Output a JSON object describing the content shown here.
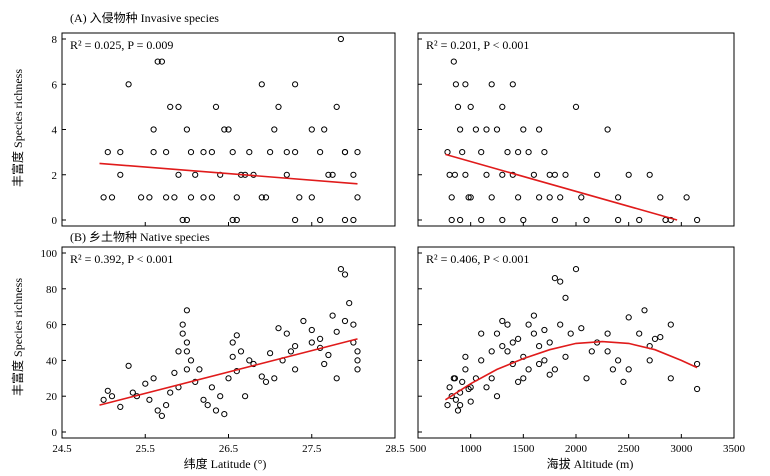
{
  "figure": {
    "section_a": "(A) 入侵物种  Invasive species",
    "section_b": "(B) 乡土物种  Native species",
    "ylabel_top": "丰富度  Species richness",
    "ylabel_bottom": "丰富度  Species richness",
    "xlabel_left": "纬度 Latitude (°)",
    "xlabel_right": "海拔 Altitude (m)",
    "fit_color": "#e01b1b"
  },
  "chart_data": [
    {
      "type": "scatter",
      "panel": "A-left",
      "stat": "R² = 0.025, P = 0.009",
      "xlim": [
        24.5,
        28.5
      ],
      "ylim": [
        0,
        8
      ],
      "yticks": [
        0,
        2,
        4,
        6,
        8
      ],
      "fit": {
        "kind": "linear",
        "x": [
          24.95,
          28.05
        ],
        "y": [
          2.5,
          1.6
        ]
      },
      "points": [
        [
          25.0,
          1
        ],
        [
          25.1,
          1
        ],
        [
          25.2,
          2
        ],
        [
          25.3,
          6
        ],
        [
          25.45,
          1
        ],
        [
          25.55,
          1
        ],
        [
          25.6,
          4
        ],
        [
          25.65,
          7
        ],
        [
          25.7,
          7
        ],
        [
          25.75,
          3
        ],
        [
          25.8,
          5
        ],
        [
          25.85,
          1
        ],
        [
          25.9,
          2
        ],
        [
          26.0,
          4
        ],
        [
          26.05,
          3
        ],
        [
          26.1,
          2
        ],
        [
          26.2,
          1
        ],
        [
          26.3,
          3
        ],
        [
          26.35,
          5
        ],
        [
          26.4,
          2
        ],
        [
          26.5,
          4
        ],
        [
          26.55,
          3
        ],
        [
          26.6,
          1
        ],
        [
          26.7,
          2
        ],
        [
          26.8,
          2
        ],
        [
          26.9,
          6
        ],
        [
          26.95,
          1
        ],
        [
          27.0,
          3
        ],
        [
          27.1,
          5
        ],
        [
          27.2,
          2
        ],
        [
          27.3,
          6
        ],
        [
          27.35,
          1
        ],
        [
          27.5,
          4
        ],
        [
          27.6,
          3
        ],
        [
          27.7,
          2
        ],
        [
          27.8,
          5
        ],
        [
          27.85,
          8
        ],
        [
          27.9,
          3
        ],
        [
          28.0,
          2
        ],
        [
          28.05,
          1
        ],
        [
          25.95,
          0
        ],
        [
          26.0,
          0
        ],
        [
          26.55,
          0
        ],
        [
          26.6,
          0
        ],
        [
          27.3,
          0
        ],
        [
          27.6,
          0
        ],
        [
          27.9,
          0
        ],
        [
          28.0,
          0
        ],
        [
          25.05,
          3
        ],
        [
          25.6,
          3
        ],
        [
          26.2,
          3
        ],
        [
          26.75,
          3
        ],
        [
          27.3,
          3
        ],
        [
          27.9,
          3
        ],
        [
          25.9,
          5
        ],
        [
          26.45,
          4
        ],
        [
          27.05,
          4
        ],
        [
          27.65,
          4
        ],
        [
          25.75,
          1
        ],
        [
          26.3,
          1
        ],
        [
          26.9,
          1
        ],
        [
          27.5,
          1
        ],
        [
          28.05,
          3
        ],
        [
          25.2,
          3
        ],
        [
          26.05,
          1
        ],
        [
          26.65,
          2
        ],
        [
          27.2,
          3
        ],
        [
          27.75,
          2
        ]
      ]
    },
    {
      "type": "scatter",
      "panel": "A-right",
      "stat": "R² = 0.201, P < 0.001",
      "xlim": [
        500,
        3500
      ],
      "ylim": [
        0,
        8
      ],
      "yticks": [
        0,
        2,
        4,
        6,
        8
      ],
      "fit": {
        "kind": "linear",
        "x": [
          760,
          2960
        ],
        "y": [
          2.9,
          0.0
        ]
      },
      "points": [
        [
          780,
          3
        ],
        [
          800,
          2
        ],
        [
          820,
          1
        ],
        [
          840,
          7
        ],
        [
          860,
          6
        ],
        [
          880,
          5
        ],
        [
          900,
          4
        ],
        [
          920,
          3
        ],
        [
          950,
          2
        ],
        [
          980,
          1
        ],
        [
          1000,
          5
        ],
        [
          1050,
          4
        ],
        [
          1100,
          3
        ],
        [
          1150,
          2
        ],
        [
          1200,
          1
        ],
        [
          1250,
          4
        ],
        [
          1300,
          5
        ],
        [
          1350,
          3
        ],
        [
          1400,
          2
        ],
        [
          1450,
          1
        ],
        [
          1500,
          4
        ],
        [
          1550,
          3
        ],
        [
          1600,
          2
        ],
        [
          1650,
          1
        ],
        [
          1700,
          3
        ],
        [
          1750,
          2
        ],
        [
          1800,
          2
        ],
        [
          1850,
          1
        ],
        [
          1900,
          2
        ],
        [
          2000,
          5
        ],
        [
          2050,
          1
        ],
        [
          2200,
          2
        ],
        [
          2300,
          4
        ],
        [
          2400,
          1
        ],
        [
          2500,
          2
        ],
        [
          2700,
          2
        ],
        [
          2800,
          1
        ],
        [
          2900,
          0
        ],
        [
          3050,
          1
        ],
        [
          3150,
          0
        ],
        [
          820,
          0
        ],
        [
          900,
          0
        ],
        [
          1100,
          0
        ],
        [
          1300,
          0
        ],
        [
          1500,
          0
        ],
        [
          1800,
          0
        ],
        [
          2100,
          0
        ],
        [
          2400,
          0
        ],
        [
          2600,
          0
        ],
        [
          2850,
          0
        ],
        [
          1200,
          6
        ],
        [
          1400,
          6
        ],
        [
          950,
          6
        ],
        [
          1150,
          4
        ],
        [
          1650,
          4
        ],
        [
          850,
          2
        ],
        [
          1000,
          1
        ],
        [
          1300,
          2
        ],
        [
          1450,
          3
        ],
        [
          1750,
          1
        ]
      ]
    },
    {
      "type": "scatter",
      "panel": "B-left",
      "stat": "R² = 0.392, P < 0.001",
      "xlim": [
        24.5,
        28.5
      ],
      "ylim": [
        0,
        100
      ],
      "yticks": [
        0,
        20,
        40,
        60,
        80,
        100
      ],
      "xticks": [
        24.5,
        25.5,
        26.5,
        27.5,
        28.5
      ],
      "fit": {
        "kind": "linear",
        "x": [
          24.95,
          28.05
        ],
        "y": [
          15,
          52
        ]
      },
      "points": [
        [
          25.0,
          18
        ],
        [
          25.05,
          23
        ],
        [
          25.1,
          20
        ],
        [
          25.2,
          14
        ],
        [
          25.3,
          37
        ],
        [
          25.35,
          22
        ],
        [
          25.5,
          27
        ],
        [
          25.55,
          18
        ],
        [
          25.6,
          30
        ],
        [
          25.65,
          12
        ],
        [
          25.7,
          9
        ],
        [
          25.75,
          15
        ],
        [
          25.8,
          22
        ],
        [
          25.85,
          33
        ],
        [
          25.9,
          45
        ],
        [
          25.95,
          60
        ],
        [
          26.0,
          68
        ],
        [
          26.0,
          50
        ],
        [
          26.05,
          40
        ],
        [
          26.1,
          28
        ],
        [
          26.15,
          35
        ],
        [
          26.2,
          18
        ],
        [
          26.3,
          25
        ],
        [
          26.35,
          12
        ],
        [
          26.4,
          20
        ],
        [
          26.5,
          30
        ],
        [
          26.55,
          50
        ],
        [
          26.6,
          54
        ],
        [
          26.65,
          45
        ],
        [
          26.7,
          20
        ],
        [
          26.8,
          38
        ],
        [
          26.9,
          31
        ],
        [
          26.95,
          28
        ],
        [
          27.0,
          44
        ],
        [
          27.1,
          58
        ],
        [
          27.15,
          40
        ],
        [
          27.2,
          55
        ],
        [
          27.3,
          48
        ],
        [
          27.4,
          62
        ],
        [
          27.5,
          57
        ],
        [
          27.6,
          47
        ],
        [
          27.7,
          43
        ],
        [
          27.75,
          65
        ],
        [
          27.8,
          56
        ],
        [
          27.85,
          91
        ],
        [
          27.9,
          88
        ],
        [
          27.95,
          72
        ],
        [
          28.0,
          60
        ],
        [
          28.05,
          40
        ],
        [
          28.05,
          35
        ],
        [
          25.95,
          55
        ],
        [
          26.0,
          45
        ],
        [
          26.0,
          35
        ],
        [
          26.55,
          42
        ],
        [
          26.6,
          34
        ],
        [
          27.3,
          35
        ],
        [
          27.6,
          52
        ],
        [
          27.9,
          62
        ],
        [
          28.0,
          50
        ],
        [
          25.4,
          20
        ],
        [
          25.9,
          25
        ],
        [
          26.45,
          10
        ],
        [
          27.05,
          30
        ],
        [
          27.5,
          50
        ],
        [
          27.8,
          30
        ],
        [
          26.25,
          15
        ],
        [
          26.75,
          40
        ],
        [
          27.25,
          45
        ],
        [
          27.65,
          38
        ],
        [
          28.05,
          45
        ]
      ]
    },
    {
      "type": "scatter",
      "panel": "B-right",
      "stat": "R² = 0.406, P < 0.001",
      "xlim": [
        500,
        3500
      ],
      "ylim": [
        0,
        100
      ],
      "yticks": [
        0,
        20,
        40,
        60,
        80,
        100
      ],
      "xticks": [
        500,
        1000,
        1500,
        2000,
        2500,
        3000,
        3500
      ],
      "fit": {
        "kind": "quadratic",
        "x": [
          760,
          1000,
          1250,
          1500,
          1750,
          2000,
          2250,
          2500,
          2750,
          3000,
          3150
        ],
        "y": [
          18,
          27,
          35,
          41,
          46,
          49.5,
          50.5,
          49.5,
          46,
          40,
          36
        ]
      },
      "points": [
        [
          780,
          15
        ],
        [
          800,
          25
        ],
        [
          820,
          20
        ],
        [
          840,
          30
        ],
        [
          860,
          18
        ],
        [
          880,
          12
        ],
        [
          900,
          22
        ],
        [
          920,
          28
        ],
        [
          950,
          35
        ],
        [
          980,
          24
        ],
        [
          1000,
          17
        ],
        [
          1050,
          30
        ],
        [
          1100,
          40
        ],
        [
          1150,
          25
        ],
        [
          1200,
          45
        ],
        [
          1250,
          55
        ],
        [
          1300,
          48
        ],
        [
          1350,
          60
        ],
        [
          1400,
          38
        ],
        [
          1450,
          52
        ],
        [
          1500,
          42
        ],
        [
          1550,
          35
        ],
        [
          1600,
          55
        ],
        [
          1650,
          48
        ],
        [
          1700,
          40
        ],
        [
          1750,
          50
        ],
        [
          1800,
          86
        ],
        [
          1850,
          84
        ],
        [
          1900,
          75
        ],
        [
          2000,
          91
        ],
        [
          2050,
          58
        ],
        [
          2200,
          50
        ],
        [
          2300,
          45
        ],
        [
          2400,
          40
        ],
        [
          2500,
          64
        ],
        [
          2600,
          55
        ],
        [
          2650,
          68
        ],
        [
          2700,
          48
        ],
        [
          2800,
          53
        ],
        [
          2900,
          60
        ],
        [
          3150,
          38
        ],
        [
          3150,
          24
        ],
        [
          850,
          30
        ],
        [
          900,
          15
        ],
        [
          950,
          42
        ],
        [
          1000,
          25
        ],
        [
          1100,
          55
        ],
        [
          1200,
          30
        ],
        [
          1300,
          62
        ],
        [
          1400,
          50
        ],
        [
          1500,
          30
        ],
        [
          1600,
          65
        ],
        [
          1700,
          57
        ],
        [
          1800,
          35
        ],
        [
          1900,
          42
        ],
        [
          2100,
          30
        ],
        [
          2300,
          55
        ],
        [
          2500,
          35
        ],
        [
          2700,
          40
        ],
        [
          2900,
          30
        ],
        [
          1250,
          20
        ],
        [
          1350,
          45
        ],
        [
          1450,
          28
        ],
        [
          1550,
          60
        ],
        [
          1650,
          38
        ],
        [
          1750,
          32
        ],
        [
          1850,
          60
        ],
        [
          1950,
          55
        ],
        [
          2150,
          45
        ],
        [
          2350,
          35
        ],
        [
          2450,
          28
        ],
        [
          2750,
          52
        ]
      ]
    }
  ]
}
